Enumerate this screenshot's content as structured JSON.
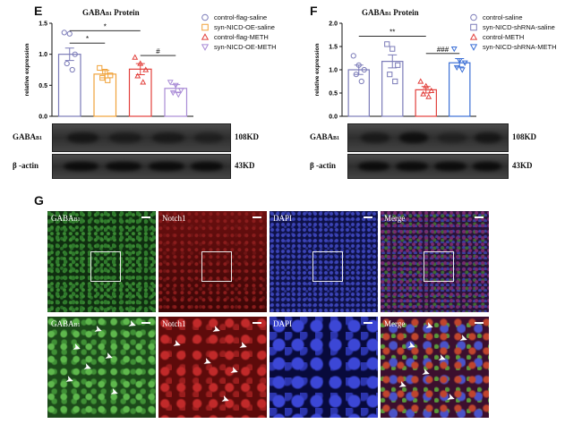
{
  "panels": {
    "e": "E",
    "f": "F",
    "g": "G"
  },
  "colors": {
    "group1": "#7b7bb8",
    "group2": "#f0a23a",
    "group3": "#e2403c",
    "group4": "#a98bd6",
    "f_group4": "#3b6fd6"
  },
  "chart_data": [
    {
      "type": "bar",
      "title": {
        "main": "GABA",
        "sub": "B1",
        "rest": " Protein"
      },
      "ylabel": "relative expression",
      "ylim": [
        0,
        1.5
      ],
      "yticks": [
        "0.0",
        "0.5",
        "1.0",
        "1.5"
      ],
      "categories": [
        "control-flag-saline",
        "syn-NICD-OE-saline",
        "control-flag-METH",
        "syn-NICD-OE-METH"
      ],
      "markers": [
        "circle",
        "square",
        "triangle-up",
        "triangle-down"
      ],
      "values": [
        1.0,
        0.68,
        0.76,
        0.45
      ],
      "errors": [
        0.1,
        0.06,
        0.09,
        0.06
      ],
      "points": [
        [
          1.35,
          1.33,
          1.0,
          0.85,
          0.75
        ],
        [
          0.78,
          0.72,
          0.66,
          0.62,
          0.58
        ],
        [
          0.95,
          0.85,
          0.75,
          0.65,
          0.55
        ],
        [
          0.55,
          0.5,
          0.42,
          0.38,
          0.35
        ]
      ],
      "significance": [
        {
          "label": "*",
          "from": 0,
          "to": 2,
          "y": 1.38
        },
        {
          "label": "*",
          "from": 0,
          "to": 1,
          "y": 1.18
        },
        {
          "label": "#",
          "from": 2,
          "to": 3,
          "y": 0.98
        }
      ]
    },
    {
      "type": "bar",
      "title": {
        "main": "GABA",
        "sub": "B1",
        "rest": " Protein"
      },
      "ylabel": "relative expression",
      "ylim": [
        0,
        2.0
      ],
      "yticks": [
        "0.0",
        "0.5",
        "1.0",
        "1.5",
        "2.0"
      ],
      "categories": [
        "control-saline",
        "syn-NICD-shRNA-saline",
        "control-METH",
        "syn-NICD-shRNA-METH"
      ],
      "markers": [
        "circle",
        "square",
        "triangle-up",
        "triangle-down"
      ],
      "values": [
        1.0,
        1.18,
        0.57,
        1.15
      ],
      "errors": [
        0.1,
        0.14,
        0.07,
        0.09
      ],
      "points": [
        [
          1.3,
          1.1,
          1.0,
          0.9,
          0.75
        ],
        [
          1.55,
          1.45,
          1.1,
          0.9,
          0.75
        ],
        [
          0.75,
          0.65,
          0.55,
          0.48,
          0.42
        ],
        [
          1.45,
          1.2,
          1.15,
          1.05,
          1.0
        ]
      ],
      "significance": [
        {
          "label": "**",
          "from": 0,
          "to": 2,
          "y": 1.72
        },
        {
          "label": "###",
          "from": 2,
          "to": 3,
          "y": 1.35
        }
      ]
    }
  ],
  "blots": {
    "gaba_label_main": "GABA",
    "gaba_label_sub": "B1",
    "actin_label": "β -actin",
    "gaba_kd": "108KD",
    "actin_kd": "43KD"
  },
  "microscopy": {
    "label_gaba_main": "GABA",
    "label_gaba_sub": "B1",
    "label_notch": "Notch1",
    "label_dapi": "DAPI",
    "label_merge": "Merge"
  }
}
